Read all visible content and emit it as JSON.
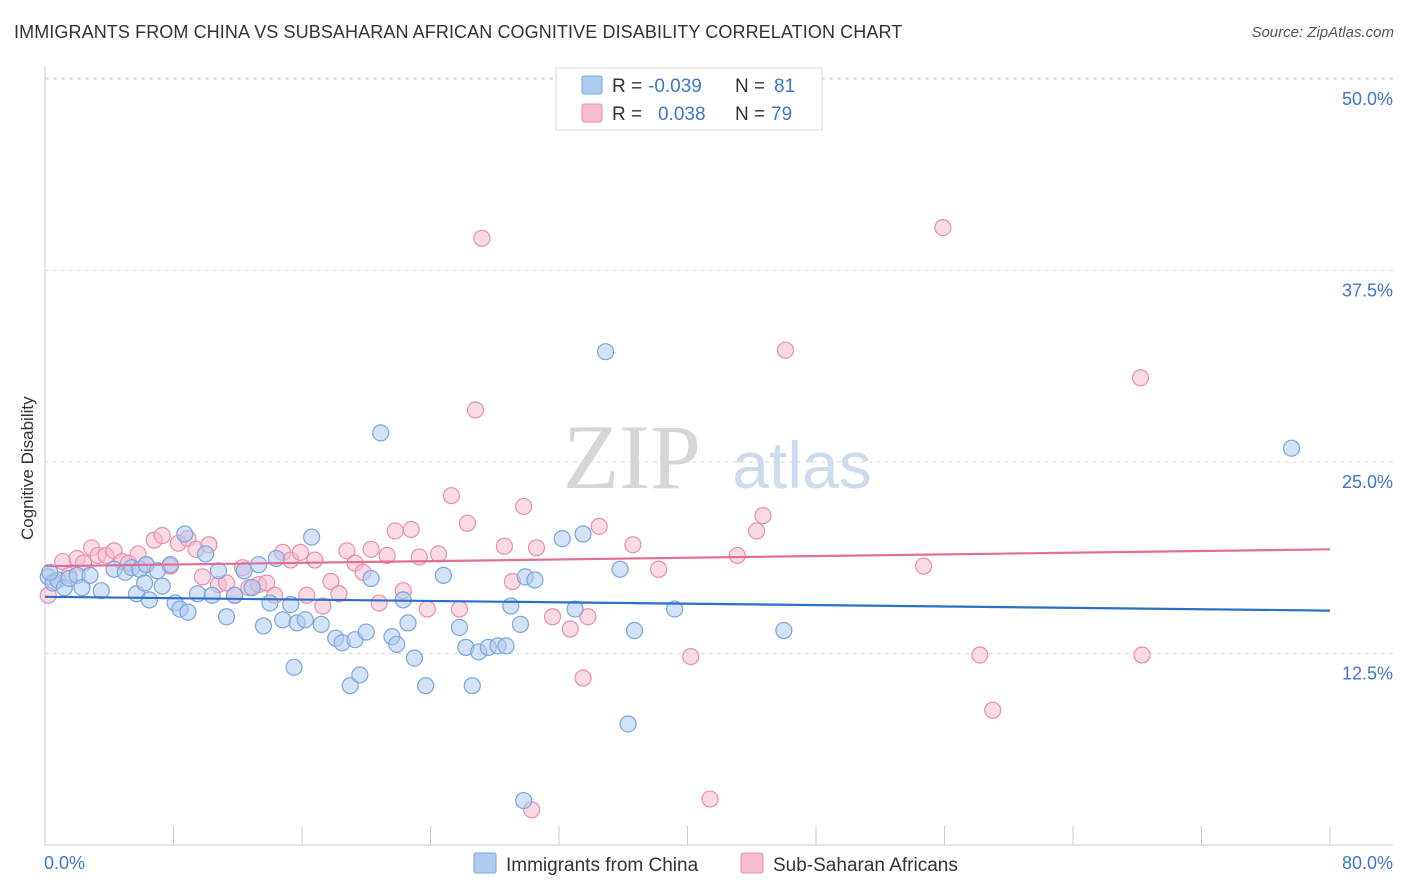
{
  "header": {
    "title": "IMMIGRANTS FROM CHINA VS SUBSAHARAN AFRICAN COGNITIVE DISABILITY CORRELATION CHART",
    "source": "Source: ZipAtlas.com"
  },
  "watermark": {
    "zip": "ZIP",
    "atlas": "atlas"
  },
  "colors": {
    "china_fill": "#aecbf0",
    "china_stroke": "#7aa6df",
    "china_line": "#2a6fc9",
    "africa_fill": "#f6bcd0",
    "africa_stroke": "#ea8fae",
    "africa_line": "#e06f97",
    "tick_text": "#3f77c8",
    "grid": "#d9d9d9"
  },
  "legend": {
    "rows": [
      {
        "r_label": "R =",
        "r_value": "-0.039",
        "n_label": "N =",
        "n_value": "81"
      },
      {
        "r_label": "R =",
        "r_value": "0.038",
        "n_label": "N =",
        "n_value": "79"
      }
    ]
  },
  "chart_data": {
    "type": "scatter",
    "title": "IMMIGRANTS FROM CHINA VS SUBSAHARAN AFRICAN COGNITIVE DISABILITY CORRELATION CHART",
    "xlabel": "",
    "ylabel": "Cognitive Disability",
    "xlim": [
      0,
      80
    ],
    "ylim": [
      0,
      50
    ],
    "x_tick_labels": [
      "0.0%",
      "80.0%"
    ],
    "y_ticks": [
      12.5,
      25.0,
      37.5,
      50.0
    ],
    "y_tick_labels": [
      "12.5%",
      "25.0%",
      "37.5%",
      "50.0%"
    ],
    "grid": true,
    "legend_position": "top-center",
    "series": [
      {
        "name": "Immigrants from China",
        "r": -0.039,
        "n": 81,
        "trend": {
          "x": [
            0,
            80
          ],
          "y": [
            16.2,
            15.3
          ]
        },
        "points": [
          [
            0.2,
            17.5
          ],
          [
            0.5,
            17.1
          ],
          [
            0.8,
            17.3
          ],
          [
            1.2,
            16.8
          ],
          [
            1.5,
            17.4
          ],
          [
            2.0,
            17.6
          ],
          [
            2.3,
            16.8
          ],
          [
            2.8,
            17.6
          ],
          [
            3.5,
            16.6
          ],
          [
            4.3,
            18.0
          ],
          [
            5.0,
            17.8
          ],
          [
            5.4,
            18.1
          ],
          [
            5.9,
            18.0
          ],
          [
            6.3,
            18.3
          ],
          [
            5.7,
            16.4
          ],
          [
            6.2,
            17.1
          ],
          [
            6.5,
            16.0
          ],
          [
            7.0,
            17.9
          ],
          [
            7.3,
            16.9
          ],
          [
            7.8,
            18.3
          ],
          [
            8.1,
            15.8
          ],
          [
            8.4,
            15.4
          ],
          [
            8.9,
            15.2
          ],
          [
            8.7,
            20.3
          ],
          [
            9.5,
            16.4
          ],
          [
            10.0,
            19.0
          ],
          [
            10.4,
            16.3
          ],
          [
            10.8,
            17.9
          ],
          [
            11.3,
            14.9
          ],
          [
            11.8,
            16.3
          ],
          [
            12.4,
            17.9
          ],
          [
            12.9,
            16.8
          ],
          [
            13.3,
            18.3
          ],
          [
            13.6,
            14.3
          ],
          [
            14.0,
            15.8
          ],
          [
            14.4,
            18.7
          ],
          [
            14.8,
            14.7
          ],
          [
            15.3,
            15.7
          ],
          [
            15.5,
            11.6
          ],
          [
            15.7,
            14.5
          ],
          [
            16.2,
            14.7
          ],
          [
            16.6,
            20.1
          ],
          [
            17.2,
            14.4
          ],
          [
            18.1,
            13.5
          ],
          [
            18.5,
            13.2
          ],
          [
            19.0,
            10.4
          ],
          [
            19.3,
            13.4
          ],
          [
            19.6,
            11.1
          ],
          [
            20.0,
            13.9
          ],
          [
            20.3,
            17.4
          ],
          [
            20.9,
            26.9
          ],
          [
            21.6,
            13.6
          ],
          [
            21.9,
            13.1
          ],
          [
            22.3,
            16.0
          ],
          [
            22.6,
            14.5
          ],
          [
            23.0,
            12.2
          ],
          [
            23.7,
            10.4
          ],
          [
            24.8,
            17.6
          ],
          [
            25.8,
            14.2
          ],
          [
            26.2,
            12.9
          ],
          [
            26.6,
            10.4
          ],
          [
            27.0,
            12.6
          ],
          [
            27.6,
            12.9
          ],
          [
            28.2,
            13.0
          ],
          [
            28.7,
            13.0
          ],
          [
            29.0,
            15.6
          ],
          [
            29.6,
            14.4
          ],
          [
            29.9,
            17.5
          ],
          [
            30.5,
            17.3
          ],
          [
            29.8,
            2.9
          ],
          [
            32.2,
            20.0
          ],
          [
            33.0,
            15.4
          ],
          [
            33.5,
            20.3
          ],
          [
            34.9,
            32.2
          ],
          [
            35.8,
            18.0
          ],
          [
            36.3,
            7.9
          ],
          [
            36.7,
            14.0
          ],
          [
            39.2,
            15.4
          ],
          [
            46.0,
            14.0
          ],
          [
            77.6,
            25.9
          ],
          [
            0.3,
            17.8
          ]
        ]
      },
      {
        "name": "Sub-Saharan Africans",
        "r": 0.038,
        "n": 79,
        "trend": {
          "x": [
            0,
            80
          ],
          "y": [
            18.2,
            19.3
          ]
        },
        "points": [
          [
            0.2,
            16.3
          ],
          [
            0.6,
            17.2
          ],
          [
            1.1,
            18.5
          ],
          [
            1.5,
            17.6
          ],
          [
            2.0,
            18.7
          ],
          [
            2.4,
            18.4
          ],
          [
            2.9,
            19.4
          ],
          [
            3.3,
            18.9
          ],
          [
            3.8,
            18.9
          ],
          [
            4.3,
            19.2
          ],
          [
            4.8,
            18.5
          ],
          [
            5.2,
            18.4
          ],
          [
            5.8,
            19.0
          ],
          [
            6.3,
            18.3
          ],
          [
            6.8,
            19.9
          ],
          [
            7.3,
            20.2
          ],
          [
            7.8,
            18.2
          ],
          [
            8.3,
            19.7
          ],
          [
            8.9,
            20.0
          ],
          [
            9.4,
            19.3
          ],
          [
            9.8,
            17.5
          ],
          [
            10.2,
            19.6
          ],
          [
            10.8,
            17.0
          ],
          [
            11.3,
            17.1
          ],
          [
            11.8,
            16.3
          ],
          [
            12.3,
            18.1
          ],
          [
            12.7,
            16.8
          ],
          [
            13.3,
            17.0
          ],
          [
            13.8,
            17.1
          ],
          [
            14.3,
            16.3
          ],
          [
            14.8,
            19.1
          ],
          [
            15.3,
            18.6
          ],
          [
            15.9,
            19.1
          ],
          [
            16.3,
            16.3
          ],
          [
            16.8,
            18.6
          ],
          [
            17.3,
            15.6
          ],
          [
            17.8,
            17.2
          ],
          [
            18.3,
            16.4
          ],
          [
            18.8,
            19.2
          ],
          [
            19.3,
            18.4
          ],
          [
            19.8,
            17.8
          ],
          [
            20.3,
            19.3
          ],
          [
            20.8,
            15.8
          ],
          [
            21.3,
            18.9
          ],
          [
            21.8,
            20.5
          ],
          [
            22.3,
            16.6
          ],
          [
            22.8,
            20.6
          ],
          [
            23.3,
            18.8
          ],
          [
            23.8,
            15.4
          ],
          [
            24.5,
            19.0
          ],
          [
            25.3,
            22.8
          ],
          [
            25.8,
            15.4
          ],
          [
            26.3,
            21.0
          ],
          [
            26.8,
            28.4
          ],
          [
            27.2,
            39.6
          ],
          [
            28.6,
            19.5
          ],
          [
            29.1,
            17.2
          ],
          [
            29.8,
            22.1
          ],
          [
            30.3,
            2.3
          ],
          [
            30.6,
            19.4
          ],
          [
            31.6,
            14.9
          ],
          [
            32.7,
            14.1
          ],
          [
            33.5,
            10.9
          ],
          [
            33.8,
            14.9
          ],
          [
            34.5,
            20.8
          ],
          [
            36.6,
            19.6
          ],
          [
            38.2,
            18.0
          ],
          [
            40.2,
            12.3
          ],
          [
            41.4,
            3.0
          ],
          [
            43.1,
            18.9
          ],
          [
            44.3,
            20.5
          ],
          [
            44.7,
            21.5
          ],
          [
            46.1,
            32.3
          ],
          [
            54.7,
            18.2
          ],
          [
            55.9,
            40.3
          ],
          [
            58.2,
            12.4
          ],
          [
            59.0,
            8.8
          ],
          [
            68.2,
            30.5
          ],
          [
            68.3,
            12.4
          ]
        ]
      }
    ]
  }
}
